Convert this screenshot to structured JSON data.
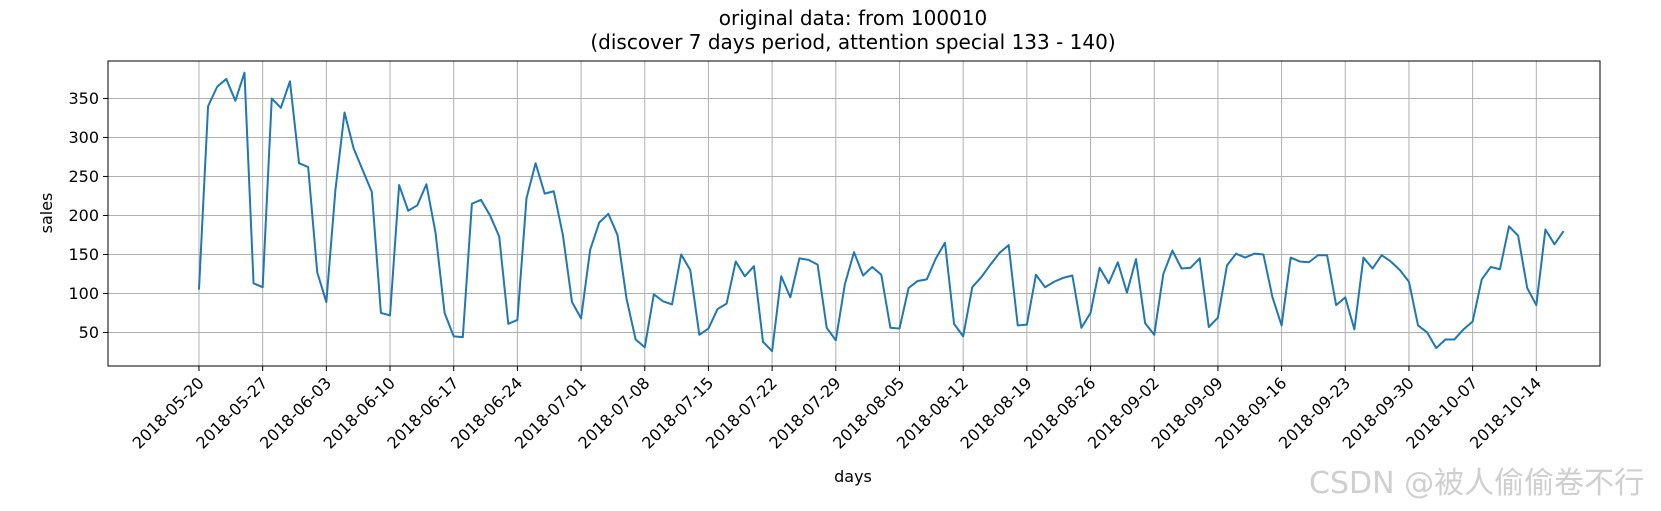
{
  "chart_data": {
    "type": "line",
    "title": "original data: from 100010",
    "subtitle": "(discover 7 days period, attention special 133 - 140)",
    "xlabel": "days",
    "ylabel": "sales",
    "grid": true,
    "line_color": "#1f77b4",
    "ylim": [
      7,
      398
    ],
    "yticks": [
      50,
      100,
      150,
      200,
      250,
      300,
      350
    ],
    "xlim": [
      "2018-05-10",
      "2018-10-21"
    ],
    "xticks": [
      "2018-05-20",
      "2018-05-27",
      "2018-06-03",
      "2018-06-10",
      "2018-06-17",
      "2018-06-24",
      "2018-07-01",
      "2018-07-08",
      "2018-07-15",
      "2018-07-22",
      "2018-07-29",
      "2018-08-05",
      "2018-08-12",
      "2018-08-19",
      "2018-08-26",
      "2018-09-02",
      "2018-09-09",
      "2018-09-16",
      "2018-09-23",
      "2018-09-30",
      "2018-10-07",
      "2018-10-14"
    ],
    "start_date": "2018-05-20",
    "values": [
      105,
      340,
      365,
      375,
      347,
      383,
      113,
      108,
      350,
      338,
      372,
      267,
      262,
      127,
      89,
      233,
      332,
      286,
      258,
      230,
      75,
      72,
      239,
      206,
      213,
      240,
      178,
      75,
      45,
      44,
      215,
      220,
      200,
      173,
      61,
      66,
      222,
      267,
      228,
      231,
      175,
      89,
      68,
      156,
      191,
      202,
      175,
      93,
      41,
      31,
      99,
      90,
      86,
      150,
      130,
      47,
      55,
      80,
      87,
      141,
      122,
      135,
      38,
      26,
      122,
      95,
      145,
      143,
      137,
      56,
      40,
      112,
      153,
      123,
      134,
      124,
      56,
      55,
      107,
      116,
      118,
      145,
      165,
      61,
      45,
      108,
      121,
      137,
      152,
      162,
      59,
      60,
      124,
      108,
      115,
      120,
      123,
      56,
      75,
      133,
      113,
      140,
      101,
      144,
      62,
      47,
      125,
      155,
      132,
      133,
      145,
      57,
      69,
      136,
      151,
      146,
      151,
      150,
      95,
      59,
      146,
      141,
      140,
      149,
      149,
      85,
      95,
      54,
      146,
      132,
      149,
      141,
      130,
      115,
      59,
      50,
      30,
      41,
      41,
      54,
      64,
      118,
      134,
      131,
      186,
      174,
      107,
      85,
      182,
      163,
      180
    ]
  },
  "watermark": "CSDN @被人偷偷卷不行"
}
